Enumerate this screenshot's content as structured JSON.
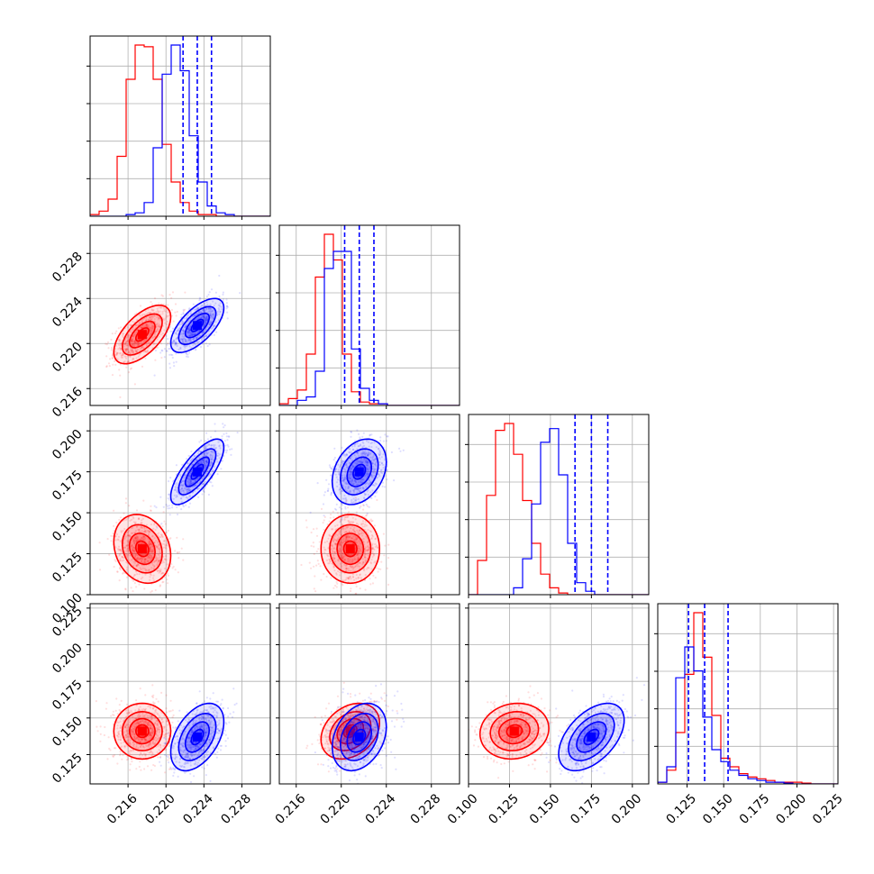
{
  "chart_data": {
    "type": "corner",
    "parameters": [
      "p0",
      "p1",
      "p2",
      "p3"
    ],
    "ranges": [
      [
        0.212,
        0.231
      ],
      [
        0.2145,
        0.2305
      ],
      [
        0.1,
        0.21
      ],
      [
        0.105,
        0.228
      ]
    ],
    "grid": true,
    "colors": {
      "series_a": "#ff0000",
      "series_b": "#0000ff"
    },
    "tick_labels": {
      "x": [
        [
          "0.216",
          "0.220",
          "0.224",
          "0.228"
        ],
        [
          "0.216",
          "0.220",
          "0.224",
          "0.228"
        ],
        [
          "0.100",
          "0.125",
          "0.150",
          "0.175",
          "0.200"
        ],
        [
          "0.125",
          "0.150",
          "0.175",
          "0.200",
          "0.225"
        ]
      ],
      "y": [
        [],
        [
          "0.216",
          "0.220",
          "0.224",
          "0.228"
        ],
        [
          "0.100",
          "0.125",
          "0.150",
          "0.175",
          "0.200"
        ],
        [
          "0.125",
          "0.150",
          "0.175",
          "0.200",
          "0.225"
        ]
      ]
    },
    "tick_values": {
      "x": [
        [
          0.216,
          0.22,
          0.224,
          0.228
        ],
        [
          0.216,
          0.22,
          0.224,
          0.228
        ],
        [
          0.1,
          0.125,
          0.15,
          0.175,
          0.2
        ],
        [
          0.125,
          0.15,
          0.175,
          0.2,
          0.225
        ]
      ],
      "y": [
        [],
        [
          0.216,
          0.22,
          0.224,
          0.228
        ],
        [
          0.1,
          0.125,
          0.15,
          0.175,
          0.2
        ],
        [
          0.125,
          0.15,
          0.175,
          0.2,
          0.225
        ]
      ]
    },
    "series": [
      {
        "color": "#ff0000",
        "mean": [
          0.2175,
          0.2208,
          0.128,
          0.141
        ],
        "sd": [
          0.0015,
          0.0013,
          0.0105,
          0.0095
        ],
        "corr": [
          [
            1,
            0.6,
            -0.2,
            0.0
          ],
          [
            0.6,
            1,
            0.0,
            0.3
          ],
          [
            -0.2,
            0.0,
            1,
            0.1
          ],
          [
            0.0,
            0.3,
            0.1,
            1
          ]
        ],
        "quantiles": null,
        "hist_rel": [
          [
            0.01,
            0.03,
            0.1,
            0.35,
            0.8,
            1.0,
            0.99,
            0.8,
            0.42,
            0.2,
            0.08,
            0.03,
            0.01,
            0.01,
            0,
            0,
            0,
            0,
            0,
            0
          ],
          [
            0.01,
            0.04,
            0.09,
            0.3,
            0.75,
            1.0,
            0.85,
            0.3,
            0.08,
            0.02,
            0.01,
            0.01,
            0,
            0,
            0,
            0,
            0,
            0,
            0,
            0
          ],
          [
            0,
            0.2,
            0.58,
            0.96,
            1.0,
            0.82,
            0.55,
            0.3,
            0.12,
            0.04,
            0.01,
            0,
            0,
            0,
            0,
            0,
            0,
            0,
            0,
            0
          ],
          [
            0.01,
            0.08,
            0.3,
            0.64,
            1.0,
            0.74,
            0.4,
            0.15,
            0.1,
            0.06,
            0.04,
            0.03,
            0.02,
            0.01,
            0.01,
            0.01,
            0.005,
            0,
            0,
            0
          ]
        ]
      },
      {
        "color": "#0000ff",
        "mean": [
          0.2233,
          0.2216,
          0.175,
          0.137
        ],
        "sd": [
          0.0014,
          0.0012,
          0.01,
          0.0115
        ],
        "corr": [
          [
            1,
            0.65,
            0.75,
            0.45
          ],
          [
            0.65,
            1,
            0.3,
            0.3
          ],
          [
            0.75,
            0.3,
            1,
            0.5
          ],
          [
            0.45,
            0.3,
            0.5,
            1
          ]
        ],
        "quantiles": [
          [
            0.2218,
            0.2233,
            0.2248
          ],
          [
            0.2203,
            0.2216,
            0.2229
          ],
          [
            0.165,
            0.175,
            0.185
          ],
          [
            0.126,
            0.137,
            0.153
          ]
        ],
        "hist_rel": [
          [
            0,
            0,
            0,
            0,
            0.01,
            0.02,
            0.08,
            0.4,
            0.83,
            1.0,
            0.85,
            0.47,
            0.2,
            0.06,
            0.02,
            0.01,
            0,
            0,
            0,
            0
          ],
          [
            0,
            0,
            0.03,
            0.05,
            0.2,
            0.8,
            0.9,
            0.9,
            0.33,
            0.1,
            0.03,
            0.01,
            0,
            0,
            0,
            0,
            0,
            0,
            0,
            0
          ],
          [
            0,
            0,
            0,
            0,
            0,
            0.04,
            0.21,
            0.53,
            0.89,
            0.97,
            0.7,
            0.3,
            0.07,
            0.02,
            0,
            0,
            0,
            0,
            0,
            0
          ],
          [
            0.01,
            0.1,
            0.62,
            0.8,
            0.66,
            0.39,
            0.2,
            0.13,
            0.08,
            0.05,
            0.03,
            0.02,
            0.01,
            0.01,
            0.005,
            0,
            0,
            0,
            0,
            0
          ]
        ]
      }
    ]
  }
}
